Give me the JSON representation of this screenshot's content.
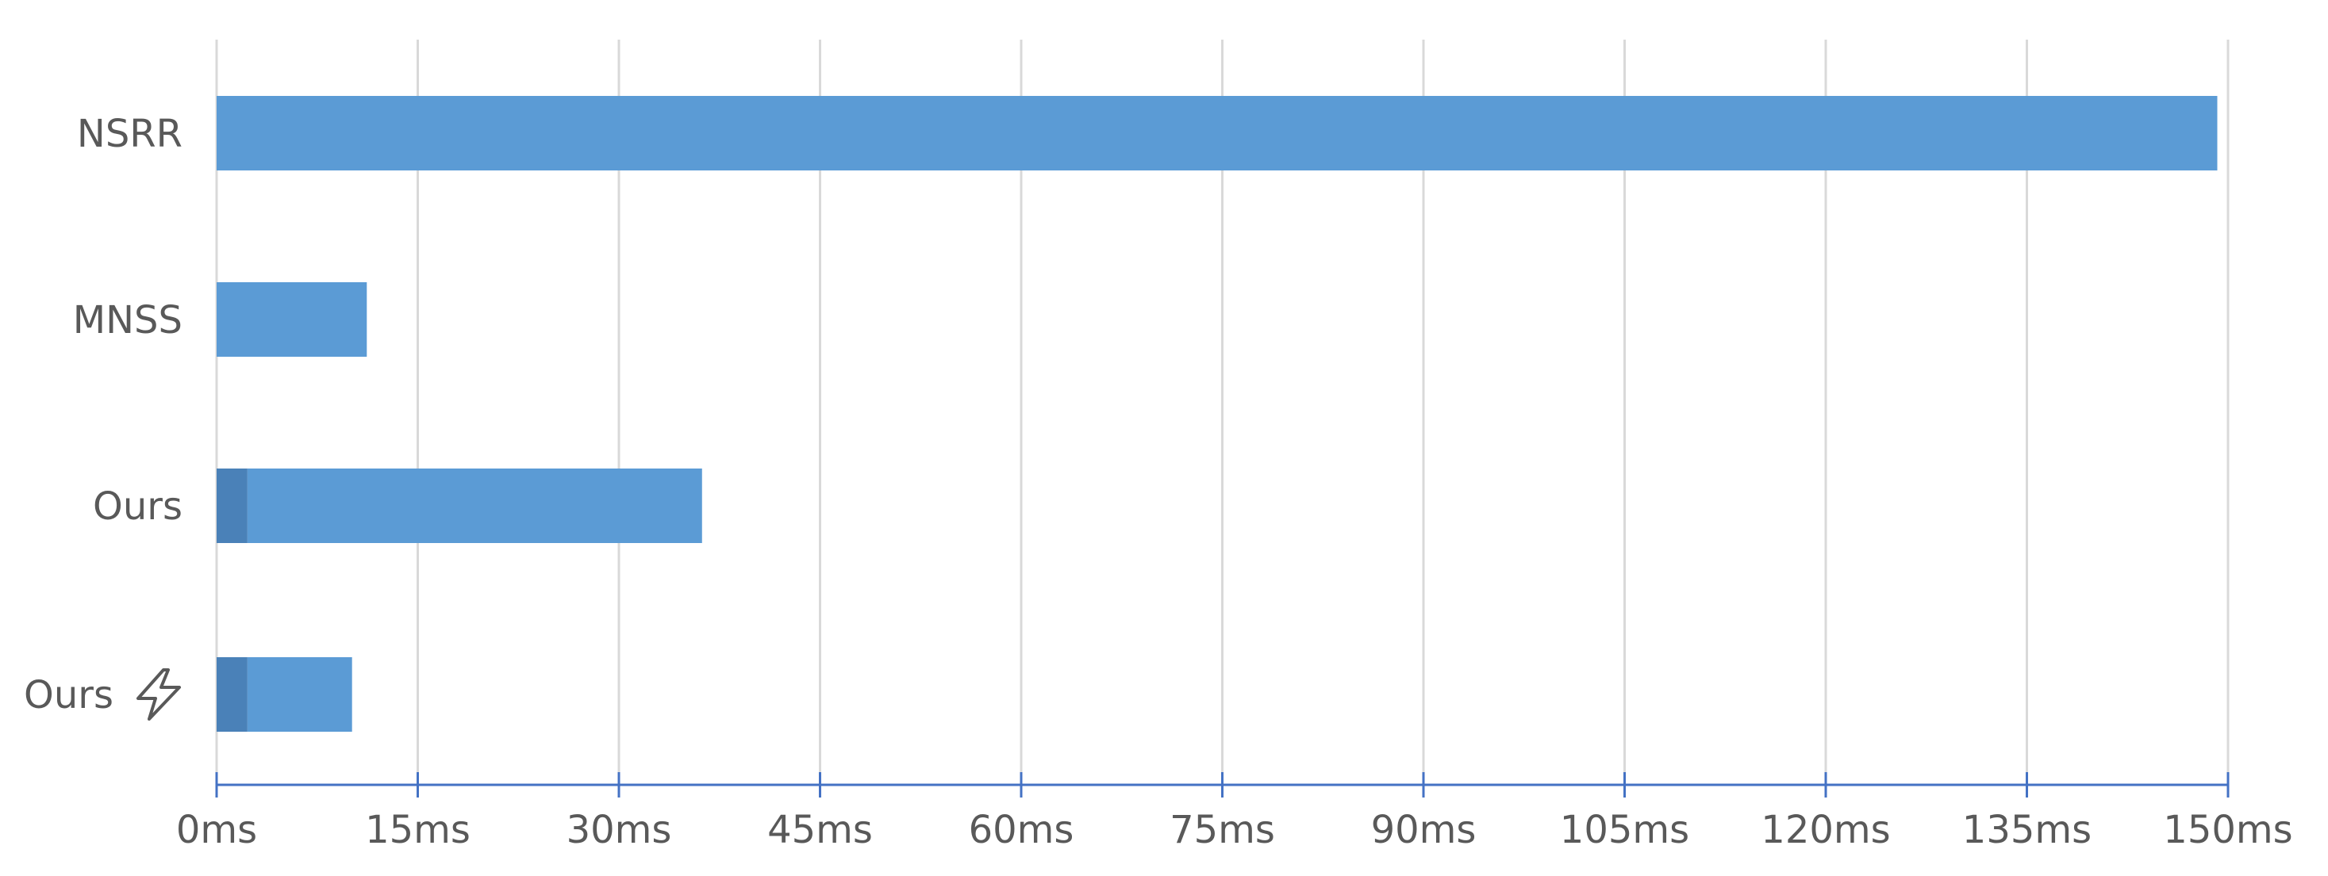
{
  "chart_data": {
    "type": "bar",
    "orientation": "horizontal",
    "stacked": true,
    "categories": [
      "NSRR",
      "MNSS",
      "Ours",
      "Ours"
    ],
    "category_icons": [
      "",
      "",
      "",
      "lightning-icon"
    ],
    "series": [
      {
        "values": [
          0,
          0,
          2.3,
          2.3
        ],
        "color": "#4a81b8"
      },
      {
        "values": [
          149.2,
          11.2,
          33.9,
          7.8
        ],
        "color": "#5b9bd5"
      }
    ],
    "xlim": [
      0,
      150
    ],
    "ticks": [
      0,
      15,
      30,
      45,
      60,
      75,
      90,
      105,
      120,
      135,
      150
    ],
    "tick_labels": [
      "0ms",
      "15ms",
      "30ms",
      "45ms",
      "60ms",
      "75ms",
      "90ms",
      "105ms",
      "120ms",
      "135ms",
      "150ms"
    ],
    "grid": true,
    "title": "",
    "xlabel": "",
    "ylabel": ""
  }
}
